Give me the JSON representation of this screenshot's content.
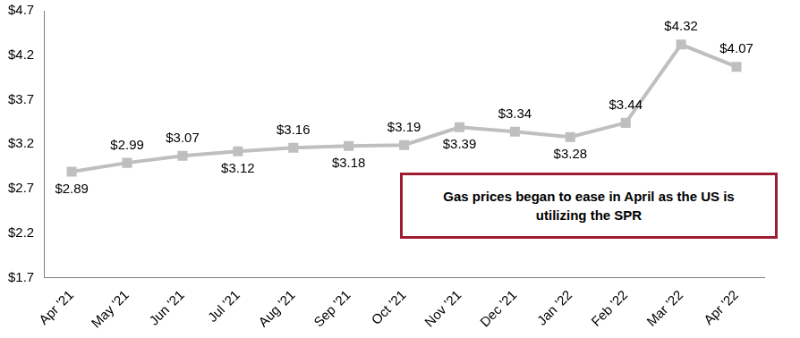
{
  "chart_data": {
    "type": "line",
    "annotation": "Gas prices began to ease in April as the US is utilizing the SPR",
    "categories": [
      "Apr '21",
      "May '21",
      "Jun '21",
      "Jul '21",
      "Aug '21",
      "Sep '21",
      "Oct '21",
      "Nov '21",
      "Dec '21",
      "Jan '22",
      "Feb '22",
      "Mar '22",
      "Apr '22"
    ],
    "values": [
      2.89,
      2.99,
      3.07,
      3.12,
      3.16,
      3.18,
      3.19,
      3.39,
      3.34,
      3.28,
      3.44,
      4.32,
      4.07
    ],
    "value_labels": [
      "$2.89",
      "$2.99",
      "$3.07",
      "$3.12",
      "$3.16",
      "$3.18",
      "$3.19",
      "$3.39",
      "$3.34",
      "$3.28",
      "$3.44",
      "$4.32",
      "$4.07"
    ],
    "data_labels": true,
    "color": "#BFBFBF",
    "marker": "square",
    "line_style": "solid",
    "grid": false,
    "ylim": [
      1.7,
      4.7
    ],
    "yticks": [
      {
        "value": 1.7,
        "label": "$1.7"
      },
      {
        "value": 2.2,
        "label": "$2.2"
      },
      {
        "value": 2.7,
        "label": "$2.7"
      },
      {
        "value": 3.2,
        "label": "$3.2"
      },
      {
        "value": 3.7,
        "label": "$3.7"
      },
      {
        "value": 4.2,
        "label": "$4.2"
      },
      {
        "value": 4.7,
        "label": "$4.7"
      }
    ]
  }
}
